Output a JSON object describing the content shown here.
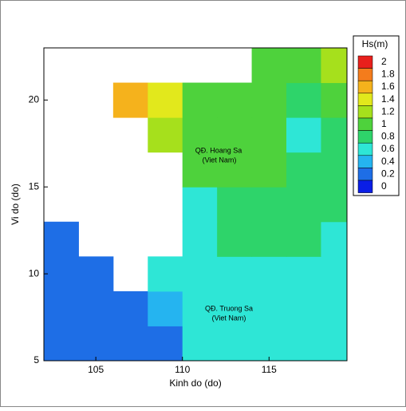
{
  "chart_data": {
    "type": "heatmap",
    "x_label": "Kinh do (do)",
    "y_label": "Vi do (do)",
    "xlim": [
      102,
      119.5
    ],
    "ylim": [
      5,
      23
    ],
    "xticks": [
      105,
      110,
      115
    ],
    "yticks": [
      5,
      10,
      15,
      20
    ],
    "x": [
      102,
      104,
      106,
      108,
      110,
      112,
      114,
      116,
      118
    ],
    "y": [
      5,
      7,
      9,
      11,
      13,
      15,
      17,
      19,
      21
    ],
    "values": [
      [
        0.1,
        0.2,
        0.3,
        0.3,
        0.5,
        0.5,
        0.6,
        0.5,
        0.5
      ],
      [
        0.2,
        0.2,
        0.3,
        0.4,
        0.5,
        0.6,
        0.7,
        0.7,
        0.6
      ],
      [
        0.2,
        0.2,
        null,
        0.5,
        0.6,
        0.7,
        0.7,
        0.7,
        0.6
      ],
      [
        0.2,
        null,
        null,
        null,
        0.7,
        0.8,
        0.8,
        0.8,
        0.7
      ],
      [
        null,
        null,
        null,
        null,
        0.7,
        0.8,
        0.8,
        0.8,
        0.8
      ],
      [
        null,
        null,
        null,
        null,
        0.9,
        0.9,
        0.9,
        0.8,
        0.8
      ],
      [
        null,
        null,
        null,
        1.2,
        1.0,
        0.9,
        0.9,
        0.7,
        0.8
      ],
      [
        null,
        null,
        1.7,
        1.4,
        1.0,
        0.9,
        0.9,
        0.8,
        0.9
      ],
      [
        null,
        null,
        null,
        null,
        null,
        null,
        0.9,
        0.9,
        1.2
      ]
    ],
    "annotations": [
      "QĐ. Hoang Sa",
      "(Viet Nam)",
      "QĐ. Truong Sa",
      "(Viet Nam)"
    ],
    "colorbar": {
      "title": "Hs(m)",
      "ticks": [
        2,
        1.8,
        1.6,
        1.4,
        1.2,
        1,
        0.8,
        0.6,
        0.4,
        0.2,
        0
      ],
      "colors": [
        "#e8201c",
        "#f47c1c",
        "#f5b21c",
        "#e2e81c",
        "#a6e01c",
        "#4ed23c",
        "#2ed46a",
        "#2ee6d6",
        "#25b4f0",
        "#1e6ee6",
        "#0a1ee6"
      ]
    }
  }
}
